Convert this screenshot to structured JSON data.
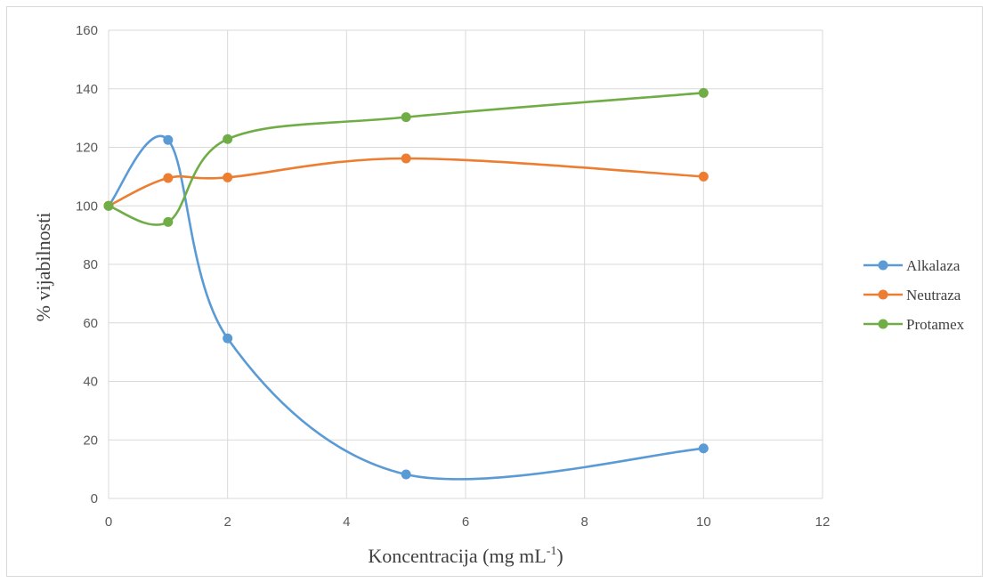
{
  "chart_data": {
    "type": "line",
    "smooth": true,
    "title": "",
    "xlabel": "Koncentracija (mg mL",
    "xlabel_superscript": "-1",
    "xlabel_suffix": ")",
    "ylabel": "% vijabilnosti",
    "xlim": [
      0,
      12
    ],
    "ylim": [
      0,
      160
    ],
    "xticks": [
      0,
      2,
      4,
      6,
      8,
      10,
      12
    ],
    "yticks": [
      0,
      20,
      40,
      60,
      80,
      100,
      120,
      140,
      160
    ],
    "grid": true,
    "legend_position": "right",
    "x": [
      0,
      1,
      2,
      5,
      10
    ],
    "series": [
      {
        "name": "Alkalaza",
        "color": "#5b9bd5",
        "values": [
          100,
          122.5,
          54.7,
          8.2,
          17.1
        ]
      },
      {
        "name": "Neutraza",
        "color": "#ed7d31",
        "values": [
          100,
          109.5,
          109.7,
          116.2,
          110.0
        ]
      },
      {
        "name": "Protamex",
        "color": "#70ad47",
        "values": [
          100,
          94.5,
          122.8,
          130.3,
          138.6
        ]
      }
    ]
  }
}
